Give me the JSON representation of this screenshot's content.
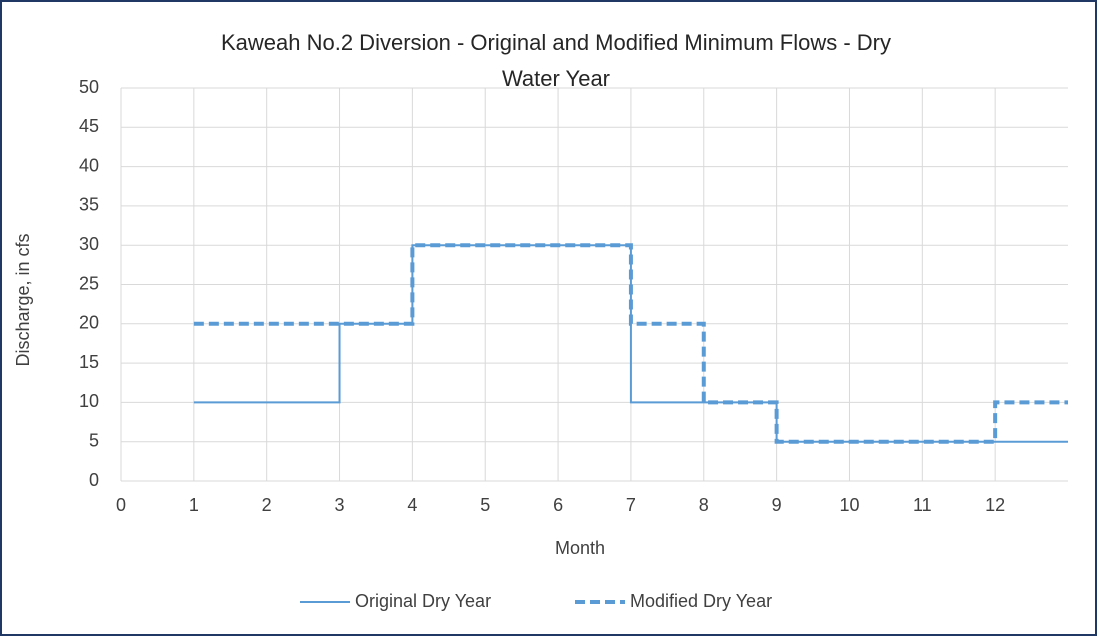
{
  "chart_data": {
    "type": "step-line",
    "title": "Kaweah No.2 Diversion - Original and Modified Minimum Flows - Dry Water Year",
    "xlabel": "Month",
    "ylabel": "Discharge, in cfs",
    "xlim": [
      0,
      13
    ],
    "xticks": [
      0,
      1,
      2,
      3,
      4,
      5,
      6,
      7,
      8,
      9,
      10,
      11,
      12
    ],
    "ylim": [
      0,
      50
    ],
    "yticks": [
      0,
      5,
      10,
      15,
      20,
      25,
      30,
      35,
      40,
      45,
      50
    ],
    "grid": true,
    "legend": "bottom",
    "series": [
      {
        "name": "Original Dry Year",
        "color": "#5b9bd5",
        "style": "solid",
        "x": [
          1,
          3,
          3,
          4,
          4,
          7,
          7,
          9,
          9,
          13
        ],
        "values": [
          10,
          10,
          20,
          20,
          30,
          30,
          10,
          10,
          5,
          5
        ]
      },
      {
        "name": "Modified Dry Year",
        "color": "#5b9bd5",
        "style": "dashed",
        "x": [
          1,
          4,
          4,
          7,
          7,
          8,
          8,
          9,
          9,
          12,
          12,
          13
        ],
        "values": [
          20,
          20,
          30,
          30,
          20,
          20,
          10,
          10,
          5,
          5,
          10,
          10
        ]
      }
    ]
  }
}
